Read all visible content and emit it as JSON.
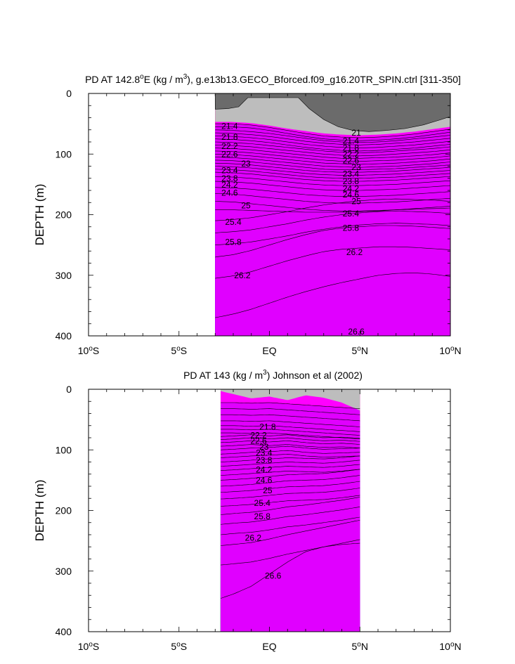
{
  "chart_data": [
    {
      "type": "contour",
      "title": "PD AT 142.8°E (kg / m³), g.e13b13.GECO_Bforced.f09_g16.20TR_SPIN.ctrl [311-350]",
      "title_parts": {
        "pre": "PD AT 142.8",
        "sup1": "o",
        "mid": "E (kg / m",
        "sup2": "3",
        "post": "), g.e13b13.GECO_Bforced.f09_g16.20TR_SPIN.ctrl [311-350]"
      },
      "ylabel": "DEPTH (m)",
      "xlabel": "",
      "x_range": [
        -10,
        10
      ],
      "y_range": [
        0,
        400
      ],
      "y_inverted": true,
      "x_ticks": [
        {
          "value": -10,
          "num": "10",
          "deg": "o",
          "hem": "S"
        },
        {
          "value": -5,
          "num": "5",
          "deg": "o",
          "hem": "S"
        },
        {
          "value": 0,
          "num": "EQ",
          "deg": "",
          "hem": ""
        },
        {
          "value": 5,
          "num": "5",
          "deg": "o",
          "hem": "N"
        },
        {
          "value": 10,
          "num": "10",
          "deg": "o",
          "hem": "N"
        }
      ],
      "y_ticks": [
        0,
        100,
        200,
        300,
        400
      ],
      "data_x_range": [
        -3,
        10
      ],
      "profile_x": [
        -3,
        -2,
        -1,
        0,
        1,
        2,
        3,
        4,
        5,
        6,
        7,
        8,
        9,
        10
      ],
      "missing_top": [
        [
          -3,
          26
        ],
        [
          -2.3,
          25
        ],
        [
          -1.7,
          22
        ],
        [
          -1.2,
          7
        ],
        [
          1.6,
          7
        ],
        [
          2.2,
          25
        ],
        [
          3.0,
          43
        ],
        [
          3.8,
          55
        ],
        [
          4.6,
          61
        ],
        [
          5.5,
          63
        ],
        [
          6.5,
          61
        ],
        [
          7.5,
          58
        ],
        [
          8.5,
          52
        ],
        [
          9.4,
          44
        ],
        [
          10,
          38
        ]
      ],
      "gray_band_bottom": [
        47,
        47,
        49,
        53,
        58,
        62,
        66,
        68,
        69,
        68,
        66,
        63,
        59,
        55
      ],
      "levels": [
        21.0,
        21.2,
        21.4,
        21.6,
        21.8,
        22.0,
        22.2,
        22.4,
        22.6,
        22.8,
        23.0,
        23.2,
        23.4,
        23.6,
        23.8,
        24.0,
        24.2,
        24.4,
        24.6,
        24.8,
        25.0,
        25.2,
        25.4,
        25.6,
        25.8,
        26.0,
        26.2,
        26.4,
        26.6
      ],
      "level_depth_edge": [
        50,
        55,
        60,
        65,
        70,
        75,
        80,
        85,
        90,
        95,
        100,
        105,
        110,
        115,
        120,
        125,
        130,
        137,
        145,
        155,
        165,
        178,
        192,
        210,
        230,
        250,
        270,
        305,
        370
      ],
      "level_profiles": {
        "21.0": [
          50,
          50,
          52,
          56,
          61,
          66,
          70,
          72,
          73,
          72,
          70,
          67,
          63,
          59
        ],
        "21.4": [
          57,
          58,
          60,
          63,
          67,
          71,
          75,
          77,
          78,
          77,
          75,
          72,
          69,
          66
        ],
        "21.8": [
          64,
          65,
          67,
          70,
          74,
          78,
          81,
          83,
          84,
          83,
          81,
          79,
          76,
          73
        ],
        "22.2": [
          74,
          75,
          77,
          80,
          83,
          86,
          89,
          91,
          92,
          91,
          89,
          87,
          85,
          82
        ],
        "22.6": [
          84,
          85,
          87,
          90,
          93,
          96,
          99,
          101,
          101,
          100,
          99,
          97,
          95,
          92
        ],
        "23.0": [
          95,
          96,
          98,
          101,
          104,
          107,
          110,
          111,
          112,
          111,
          110,
          108,
          106,
          103
        ],
        "23.4": [
          106,
          107,
          109,
          112,
          115,
          118,
          121,
          122,
          122,
          121,
          120,
          118,
          116,
          114
        ],
        "23.8": [
          117,
          118,
          120,
          123,
          126,
          129,
          131,
          132,
          132,
          131,
          130,
          128,
          126,
          124
        ],
        "24.2": [
          128,
          129,
          131,
          134,
          137,
          140,
          142,
          143,
          143,
          142,
          141,
          139,
          137,
          135
        ],
        "24.6": [
          140,
          141,
          143,
          146,
          149,
          152,
          154,
          155,
          155,
          154,
          153,
          151,
          149,
          147
        ],
        "25.0": [
          158,
          159,
          162,
          165,
          168,
          171,
          173,
          174,
          174,
          173,
          172,
          170,
          168,
          166
        ],
        "25.4": [
          190,
          190,
          191,
          192,
          193,
          194,
          194,
          194,
          193,
          192,
          190,
          189,
          188,
          187
        ],
        "25.8": [
          240,
          238,
          235,
          230,
          225,
          219,
          214,
          210,
          207,
          205,
          204,
          205,
          206,
          208
        ],
        "26.2": [
          300,
          296,
          289,
          280,
          271,
          263,
          256,
          252,
          250,
          248,
          248,
          249,
          251,
          253
        ],
        "26.6": [
          378,
          372,
          364,
          354,
          344,
          335,
          327,
          320,
          314,
          308,
          305,
          304,
          306,
          310
        ]
      },
      "labels": [
        {
          "text": "21.4",
          "x": -2.2,
          "depth": 54
        },
        {
          "text": "21.8",
          "x": -2.2,
          "depth": 72
        },
        {
          "text": "22.2",
          "x": -2.2,
          "depth": 87
        },
        {
          "text": "22.6",
          "x": -2.2,
          "depth": 100
        },
        {
          "text": "23",
          "x": -1.3,
          "depth": 116
        },
        {
          "text": "23.4",
          "x": -2.2,
          "depth": 127
        },
        {
          "text": "23.8",
          "x": -2.2,
          "depth": 140
        },
        {
          "text": "24.2",
          "x": -2.2,
          "depth": 151
        },
        {
          "text": "24.6",
          "x": -2.2,
          "depth": 164
        },
        {
          "text": "25",
          "x": -1.3,
          "depth": 185
        },
        {
          "text": "25.4",
          "x": -2.0,
          "depth": 212
        },
        {
          "text": "25.8",
          "x": -2.0,
          "depth": 245
        },
        {
          "text": "26.2",
          "x": -1.5,
          "depth": 300
        },
        {
          "text": "21",
          "x": 4.8,
          "depth": 65
        },
        {
          "text": "21.4",
          "x": 4.5,
          "depth": 78
        },
        {
          "text": "21.8",
          "x": 4.5,
          "depth": 90
        },
        {
          "text": "22.2",
          "x": 4.5,
          "depth": 100
        },
        {
          "text": "22.6",
          "x": 4.5,
          "depth": 111
        },
        {
          "text": "23",
          "x": 4.8,
          "depth": 122
        },
        {
          "text": "23.4",
          "x": 4.5,
          "depth": 133
        },
        {
          "text": "23.8",
          "x": 4.5,
          "depth": 145
        },
        {
          "text": "24.2",
          "x": 4.5,
          "depth": 157
        },
        {
          "text": "24.6",
          "x": 4.5,
          "depth": 167
        },
        {
          "text": "25",
          "x": 4.8,
          "depth": 178
        },
        {
          "text": "25.4",
          "x": 4.5,
          "depth": 198
        },
        {
          "text": "25.8",
          "x": 4.5,
          "depth": 222
        },
        {
          "text": "26.2",
          "x": 4.7,
          "depth": 262
        },
        {
          "text": "26.6",
          "x": 4.8,
          "depth": 393
        }
      ]
    },
    {
      "type": "contour",
      "title": "PD AT 143 (kg / m³) Johnson et al (2002)",
      "title_parts": {
        "pre": "PD AT 143 (kg / m",
        "sup1": "3",
        "mid": ") Johnson et al (2002)",
        "sup2": "",
        "post": ""
      },
      "ylabel": "DEPTH (m)",
      "xlabel": "",
      "x_range": [
        -10,
        10
      ],
      "y_range": [
        0,
        400
      ],
      "y_inverted": true,
      "x_ticks": [
        {
          "value": -10,
          "num": "10",
          "deg": "o",
          "hem": "S"
        },
        {
          "value": -5,
          "num": "5",
          "deg": "o",
          "hem": "S"
        },
        {
          "value": 0,
          "num": "EQ",
          "deg": "",
          "hem": ""
        },
        {
          "value": 5,
          "num": "5",
          "deg": "o",
          "hem": "N"
        },
        {
          "value": 10,
          "num": "10",
          "deg": "o",
          "hem": "N"
        }
      ],
      "y_ticks": [
        0,
        100,
        200,
        300,
        400
      ],
      "data_x_range": [
        -2.7,
        5
      ],
      "profile_x": [
        -2.7,
        -2,
        -1,
        0,
        1,
        2,
        3,
        4,
        5
      ],
      "missing_top": [
        [
          -2.7,
          0
        ],
        [
          5,
          0
        ]
      ],
      "gray_band_bottom": [
        3,
        8,
        15,
        12,
        18,
        10,
        14,
        22,
        35
      ],
      "levels": [
        21.0,
        21.2,
        21.4,
        21.6,
        21.8,
        22.0,
        22.2,
        22.4,
        22.6,
        22.8,
        23.0,
        23.2,
        23.4,
        23.6,
        23.8,
        24.0,
        24.2,
        24.4,
        24.6,
        24.8,
        25.0,
        25.2,
        25.4,
        25.6,
        25.8,
        26.0,
        26.2,
        26.4,
        26.6
      ],
      "level_depth_edge": [
        22,
        32,
        42,
        52,
        60,
        66,
        72,
        78,
        83,
        88,
        94,
        100,
        107,
        113,
        120,
        127,
        134,
        142,
        150,
        160,
        170,
        181,
        193,
        207,
        223,
        240,
        258,
        290,
        345
      ],
      "level_profiles": {
        "21.8": [
          60,
          60,
          61,
          60,
          62,
          64,
          66,
          68,
          70
        ],
        "22.6": [
          83,
          82,
          80,
          82,
          80,
          83,
          85,
          84,
          86
        ],
        "23.4": [
          107,
          106,
          104,
          103,
          101,
          104,
          106,
          105,
          104
        ],
        "24.2": [
          134,
          133,
          131,
          129,
          127,
          128,
          129,
          127,
          124
        ],
        "25.0": [
          170,
          169,
          167,
          164,
          161,
          160,
          159,
          156,
          152
        ],
        "25.8": [
          223,
          221,
          219,
          215,
          210,
          207,
          203,
          199,
          194
        ],
        "26.2": [
          258,
          256,
          253,
          247,
          240,
          234,
          228,
          222,
          216
        ],
        "26.6": [
          345,
          338,
          325,
          305,
          285,
          268,
          260,
          256,
          254
        ]
      },
      "labels": [
        {
          "text": "21.8",
          "x": -0.1,
          "depth": 62
        },
        {
          "text": "22.2",
          "x": -0.6,
          "depth": 76
        },
        {
          "text": "22.6",
          "x": -0.6,
          "depth": 85
        },
        {
          "text": "23",
          "x": -0.3,
          "depth": 95
        },
        {
          "text": "23.4",
          "x": -0.3,
          "depth": 105
        },
        {
          "text": "23.8",
          "x": -0.3,
          "depth": 117
        },
        {
          "text": "24.2",
          "x": -0.3,
          "depth": 133
        },
        {
          "text": "24.6",
          "x": -0.3,
          "depth": 150
        },
        {
          "text": "25",
          "x": -0.1,
          "depth": 167
        },
        {
          "text": "25.4",
          "x": -0.4,
          "depth": 188
        },
        {
          "text": "25.8",
          "x": -0.4,
          "depth": 210
        },
        {
          "text": "26.2",
          "x": -0.9,
          "depth": 245
        },
        {
          "text": "26.6",
          "x": 0.2,
          "depth": 308
        }
      ]
    }
  ],
  "colors": {
    "missing": "#6b6b6b",
    "low_gray": "#bdbdbd",
    "fill_scale": [
      "#ff00ff",
      "#e000ff",
      "#c000f0",
      "#9d00e0",
      "#7000d8",
      "#3c00d8",
      "#0000ff",
      "#0038ff",
      "#0064ff",
      "#0090ff",
      "#00b8ff",
      "#00d8ff",
      "#00f0f0",
      "#00f0c0",
      "#00e890",
      "#00e060",
      "#00d838",
      "#20e000",
      "#70f000",
      "#b0f800",
      "#e8ff00",
      "#ffe400",
      "#ffc400",
      "#ffa400",
      "#ff8a10",
      "#ff6a10",
      "#ff4a10",
      "#f02a10",
      "#e41010",
      "#d00000",
      "#c00000"
    ]
  }
}
